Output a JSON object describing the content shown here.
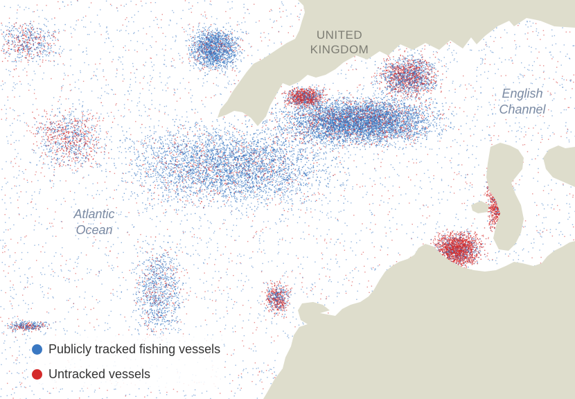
{
  "labels": {
    "united_kingdom": [
      "UNITED",
      "KINGDOM"
    ],
    "english_channel": [
      "English",
      "Channel"
    ],
    "atlantic_ocean": [
      "Atlantic",
      "Ocean"
    ]
  },
  "legend": [
    {
      "label": "Publicly tracked fishing vessels",
      "color": "#3a78c2"
    },
    {
      "label": "Untracked vessels",
      "color": "#d42a2a"
    }
  ],
  "colors": {
    "land": "#deddcc",
    "sea": "#ffffff",
    "tracked": "#3a78c2",
    "untracked": "#d42a2a"
  }
}
